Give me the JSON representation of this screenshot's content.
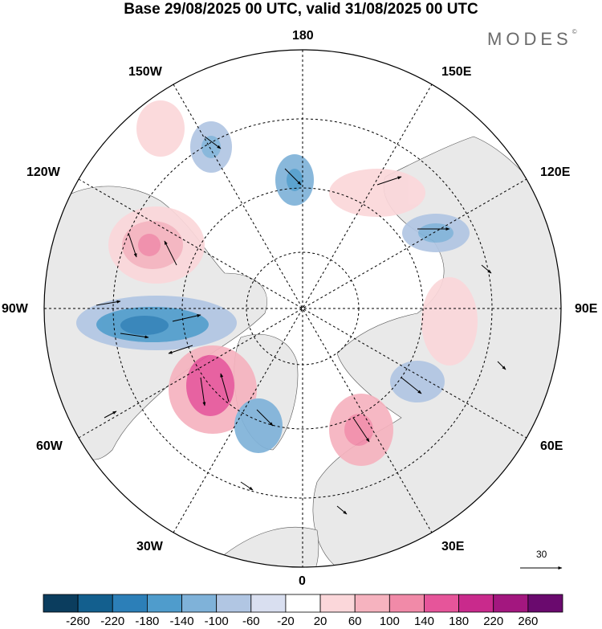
{
  "title": "Base 29/08/2025 00 UTC, valid 31/08/2025 00 UTC",
  "brand": "MODES",
  "brand_mark": "©",
  "longitude_labels": {
    "top": "180",
    "bottom": "0",
    "left": "90W",
    "right": "90E",
    "upper_left_1": "150W",
    "upper_left_2": "120W",
    "upper_right_1": "150E",
    "upper_right_2": "120E",
    "lower_left_1": "60W",
    "lower_left_2": "30W",
    "lower_right_1": "60E",
    "lower_right_2": "30E"
  },
  "vector_reference": "30",
  "colorbar": {
    "ticks": [
      "-260",
      "-220",
      "-180",
      "-140",
      "-100",
      "-60",
      "-20",
      "20",
      "60",
      "100",
      "140",
      "180",
      "220",
      "260"
    ],
    "colors": [
      "#0b3d5e",
      "#135f8e",
      "#2c7fb8",
      "#4f9ccc",
      "#7fb2d9",
      "#b1c6e3",
      "#d9dff0",
      "#ffffff",
      "#fbd7da",
      "#f6b3bf",
      "#f18aa8",
      "#e6559a",
      "#c92a8c",
      "#a3177f",
      "#6a0a6e"
    ]
  },
  "map": {
    "land_color": "#e9e9e9",
    "ocean_color": "#ffffff",
    "grid_color": "#000000"
  }
}
